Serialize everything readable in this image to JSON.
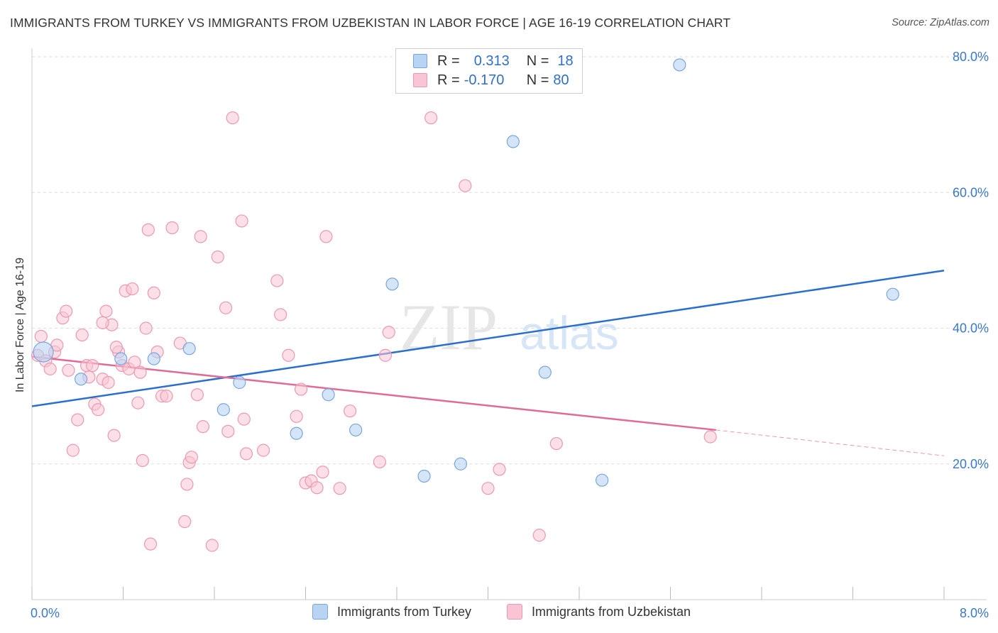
{
  "title": "IMMIGRANTS FROM TURKEY VS IMMIGRANTS FROM UZBEKISTAN IN LABOR FORCE | AGE 16-19 CORRELATION CHART",
  "source": "Source: ZipAtlas.com",
  "watermark": {
    "zip": "ZIP",
    "atlas": "atlas"
  },
  "colors": {
    "turkey_fill": "#b9d3f3",
    "turkey_stroke": "#7aa6dc",
    "turkey_line": "#2b6fcd",
    "uzbek_fill": "#f9c5d4",
    "uzbek_stroke": "#e99ab3",
    "uzbek_line": "#e06b96",
    "axis_label": "#3a78c9",
    "grid": "#dddddd"
  },
  "legend_top": {
    "rows": [
      {
        "r_label": "R =",
        "r_value": "0.313",
        "n_label": "N =",
        "n_value": "18"
      },
      {
        "r_label": "R =",
        "r_value": "-0.170",
        "n_label": "N =",
        "n_value": "80"
      }
    ]
  },
  "legend_bottom": {
    "series1": "Immigrants from Turkey",
    "series2": "Immigrants from Uzbekistan"
  },
  "chart_data": {
    "type": "scatter",
    "ylabel": "In Labor Force | Age 16-19",
    "xlim": [
      0,
      8
    ],
    "ylim": [
      0,
      80
    ],
    "x_tick_labels": [
      "0.0%",
      "8.0%"
    ],
    "y_ticks": [
      20,
      40,
      60,
      80
    ],
    "y_tick_labels": [
      "20.0%",
      "40.0%",
      "60.0%",
      "80.0%"
    ],
    "grid": true,
    "series": [
      {
        "name": "Immigrants from Turkey",
        "r": 0.313,
        "n": 18,
        "trend": {
          "x0": 0,
          "y0": 28.5,
          "x1": 8,
          "y1": 48.5
        },
        "points": [
          [
            0.1,
            36.5
          ],
          [
            0.43,
            32.5
          ],
          [
            0.78,
            35.5
          ],
          [
            1.07,
            35.5
          ],
          [
            1.38,
            37
          ],
          [
            1.68,
            28
          ],
          [
            1.82,
            32
          ],
          [
            2.32,
            24.5
          ],
          [
            2.6,
            30.2
          ],
          [
            2.84,
            25
          ],
          [
            3.16,
            46.5
          ],
          [
            3.44,
            18.2
          ],
          [
            3.76,
            20
          ],
          [
            4.22,
            67.5
          ],
          [
            4.5,
            33.5
          ],
          [
            5.0,
            17.6
          ],
          [
            5.68,
            78.8
          ],
          [
            7.55,
            45
          ]
        ]
      },
      {
        "name": "Immigrants from Uzbekistan",
        "r": -0.17,
        "n": 80,
        "trend": {
          "x0": 0,
          "y0": 35.8,
          "x1": 6.0,
          "y1": 25,
          "dash_to_x": 8,
          "dash_to_y": 21.2
        },
        "points": [
          [
            0.05,
            36
          ],
          [
            0.08,
            38.8
          ],
          [
            0.12,
            35.2
          ],
          [
            0.16,
            34
          ],
          [
            0.2,
            36.5
          ],
          [
            0.22,
            37.5
          ],
          [
            0.27,
            41.5
          ],
          [
            0.3,
            42.5
          ],
          [
            0.32,
            33.8
          ],
          [
            0.36,
            22
          ],
          [
            0.4,
            26.5
          ],
          [
            0.44,
            39
          ],
          [
            0.48,
            34.5
          ],
          [
            0.5,
            32.8
          ],
          [
            0.53,
            34.5
          ],
          [
            0.55,
            28.8
          ],
          [
            0.58,
            28
          ],
          [
            0.62,
            32.5
          ],
          [
            0.65,
            42.5
          ],
          [
            0.67,
            32
          ],
          [
            0.7,
            40.5
          ],
          [
            0.72,
            24.2
          ],
          [
            0.76,
            36.5
          ],
          [
            0.79,
            34.5
          ],
          [
            0.82,
            45.5
          ],
          [
            0.85,
            34
          ],
          [
            0.88,
            45.8
          ],
          [
            0.9,
            35
          ],
          [
            0.93,
            29
          ],
          [
            0.97,
            20.5
          ],
          [
            1.0,
            40
          ],
          [
            1.02,
            54.5
          ],
          [
            1.04,
            8.2
          ],
          [
            1.07,
            45.2
          ],
          [
            1.1,
            36.5
          ],
          [
            1.14,
            30
          ],
          [
            1.18,
            30
          ],
          [
            1.23,
            54.8
          ],
          [
            1.3,
            37.8
          ],
          [
            1.34,
            11.5
          ],
          [
            1.36,
            17
          ],
          [
            1.38,
            20.2
          ],
          [
            1.4,
            21
          ],
          [
            1.45,
            30.2
          ],
          [
            1.48,
            53.5
          ],
          [
            1.5,
            25.5
          ],
          [
            1.58,
            8
          ],
          [
            1.63,
            50.5
          ],
          [
            1.7,
            43
          ],
          [
            1.72,
            24.8
          ],
          [
            1.76,
            71
          ],
          [
            1.84,
            55.8
          ],
          [
            1.86,
            26.6
          ],
          [
            1.88,
            21.5
          ],
          [
            2.03,
            22
          ],
          [
            2.15,
            47
          ],
          [
            2.18,
            42
          ],
          [
            2.25,
            36
          ],
          [
            2.32,
            27
          ],
          [
            2.36,
            31
          ],
          [
            2.4,
            17.2
          ],
          [
            2.45,
            17.5
          ],
          [
            2.5,
            16.5
          ],
          [
            2.55,
            18.8
          ],
          [
            2.58,
            53.5
          ],
          [
            2.7,
            16.4
          ],
          [
            2.79,
            27.8
          ],
          [
            3.05,
            20.3
          ],
          [
            3.1,
            36
          ],
          [
            3.13,
            39.4
          ],
          [
            3.5,
            71
          ],
          [
            3.8,
            61
          ],
          [
            4.0,
            16.4
          ],
          [
            4.1,
            19.2
          ],
          [
            4.45,
            9.5
          ],
          [
            4.6,
            23
          ],
          [
            5.95,
            24
          ],
          [
            0.62,
            40.8
          ],
          [
            0.74,
            37.2
          ],
          [
            0.95,
            33.5
          ]
        ]
      }
    ]
  }
}
